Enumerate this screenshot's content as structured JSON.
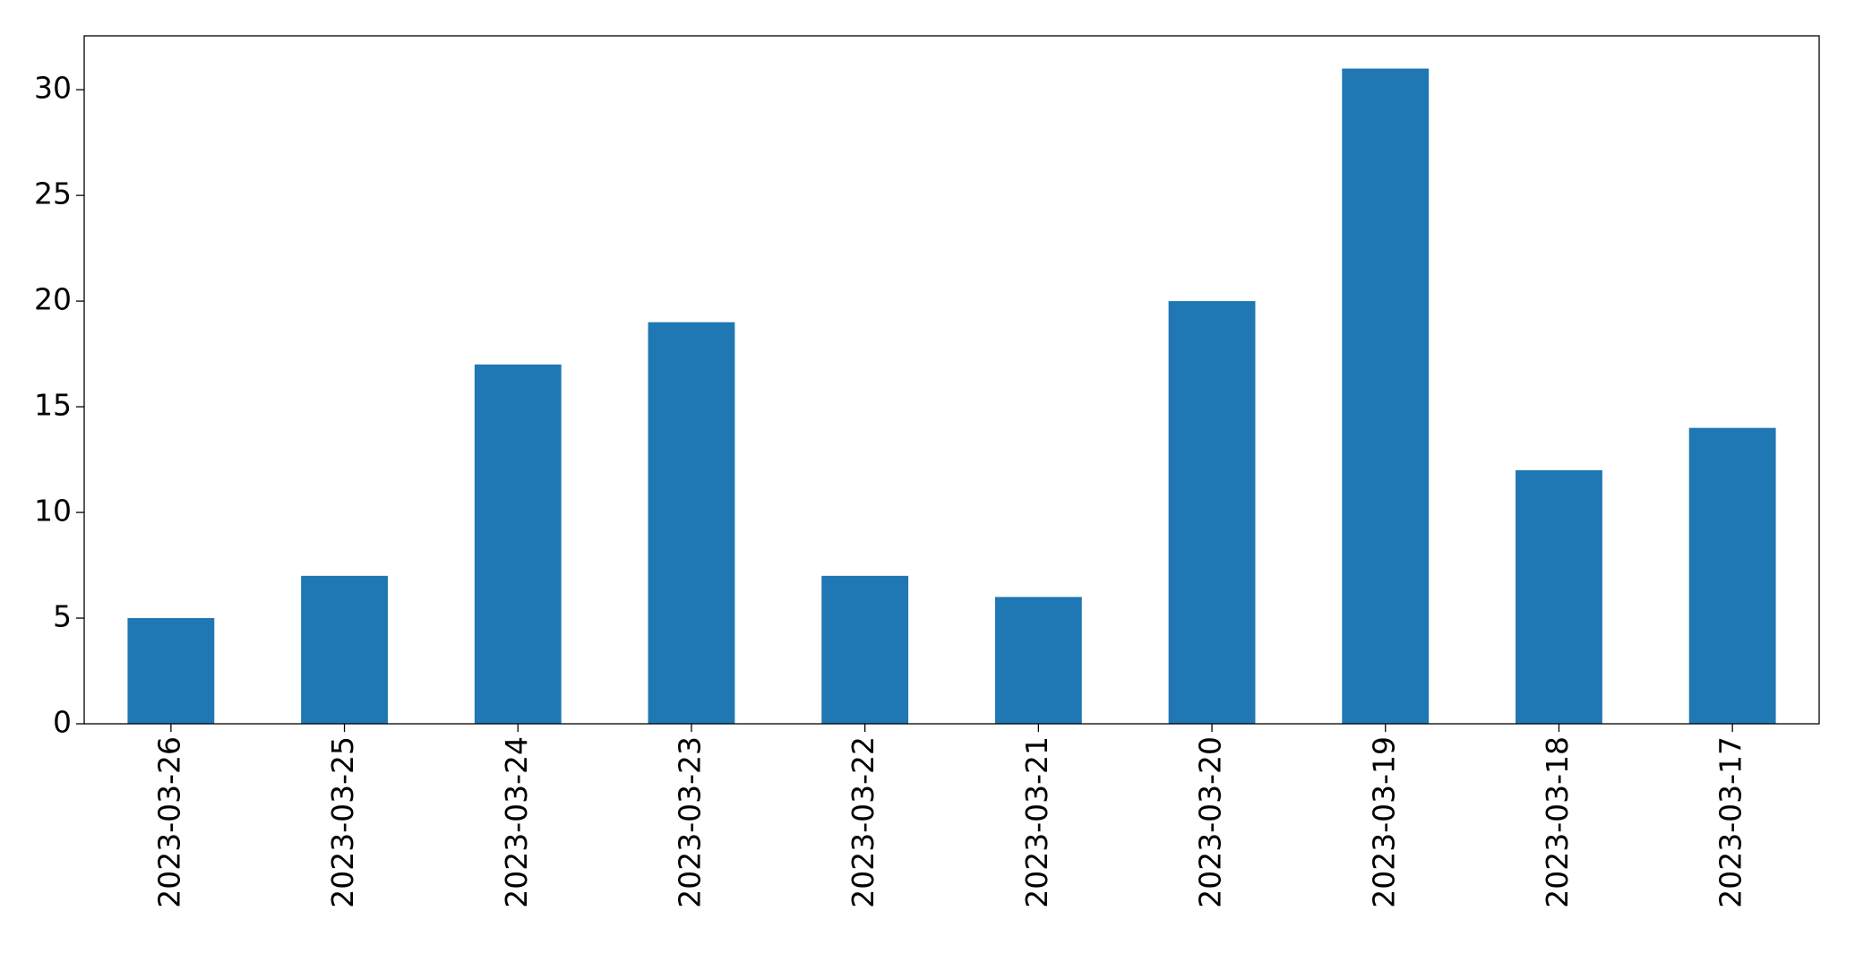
{
  "chart_data": {
    "type": "bar",
    "categories": [
      "2023-03-26",
      "2023-03-25",
      "2023-03-24",
      "2023-03-23",
      "2023-03-22",
      "2023-03-21",
      "2023-03-20",
      "2023-03-19",
      "2023-03-18",
      "2023-03-17"
    ],
    "values": [
      5,
      7,
      17,
      19,
      7,
      6,
      20,
      31,
      12,
      14
    ],
    "color": "#1f77b4",
    "ylim": [
      0,
      32.55
    ],
    "yticks": [
      0,
      5,
      10,
      15,
      20,
      25,
      30
    ],
    "grid": false
  }
}
